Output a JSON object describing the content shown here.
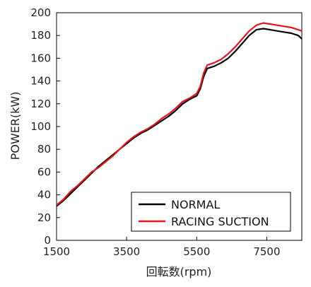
{
  "chart_data": {
    "type": "line",
    "title": "",
    "xlabel": "回転数(rpm)",
    "ylabel": "POWER(kW)",
    "xlim": [
      1500,
      8500
    ],
    "ylim": [
      0,
      200
    ],
    "xticks": [
      "1500",
      "3500",
      "5500",
      "7500"
    ],
    "xtick_values": [
      1500,
      3500,
      5500,
      7500
    ],
    "yticks": [
      "0",
      "20",
      "40",
      "60",
      "80",
      "100",
      "120",
      "140",
      "160",
      "180",
      "200"
    ],
    "ytick_values": [
      0,
      20,
      40,
      60,
      80,
      100,
      120,
      140,
      160,
      180,
      200
    ],
    "grid": false,
    "legend_position": "bottom-right",
    "series": [
      {
        "name": "NORMAL",
        "color": "#000000",
        "x": [
          1500,
          1700,
          1900,
          2100,
          2300,
          2500,
          2700,
          2900,
          3100,
          3300,
          3500,
          3700,
          3900,
          4100,
          4300,
          4500,
          4700,
          4900,
          5100,
          5300,
          5500,
          5600,
          5700,
          5800,
          5900,
          6000,
          6200,
          6400,
          6600,
          6800,
          7000,
          7200,
          7400,
          7600,
          7800,
          8000,
          8200,
          8400,
          8500
        ],
        "y": [
          30,
          35,
          41,
          47,
          53,
          59,
          65,
          70,
          75,
          80,
          85,
          90,
          94,
          97,
          101,
          105,
          109,
          114,
          120,
          124,
          127,
          133,
          144,
          151,
          152,
          153,
          156,
          160,
          166,
          173,
          180,
          185,
          186,
          185,
          184,
          183,
          182,
          180,
          177
        ]
      },
      {
        "name": "RACING SUCTION",
        "color": "#e8141d",
        "x": [
          1500,
          1700,
          1900,
          2100,
          2300,
          2500,
          2700,
          2900,
          3100,
          3300,
          3500,
          3700,
          3900,
          4100,
          4300,
          4500,
          4700,
          4900,
          5100,
          5300,
          5500,
          5600,
          5700,
          5800,
          5900,
          6000,
          6200,
          6400,
          6600,
          6800,
          7000,
          7200,
          7400,
          7600,
          7800,
          8000,
          8200,
          8400,
          8500
        ],
        "y": [
          31,
          36,
          43,
          48,
          54,
          60,
          64,
          69,
          74,
          80,
          86,
          91,
          95,
          98,
          102,
          107,
          111,
          116,
          122,
          125,
          129,
          135,
          147,
          154,
          155,
          156,
          159,
          164,
          170,
          177,
          184,
          189,
          191,
          190,
          189,
          188,
          187,
          185,
          184
        ]
      }
    ]
  }
}
